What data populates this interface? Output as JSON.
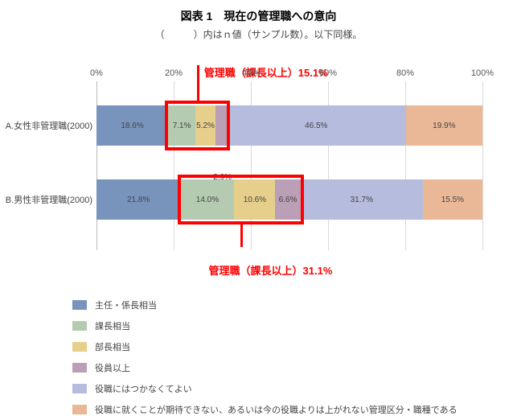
{
  "title": "図表 1　現在の管理職への意向",
  "subtitle": "（　　　）内はｎ値（サンプル数）。以下同様。",
  "callout_a": "管理職（課長以上）15.1%",
  "callout_b": "管理職（課長以上）31.1%",
  "axis_ticks": [
    "0%",
    "20%",
    "40%",
    "60%",
    "80%",
    "100%"
  ],
  "rows": {
    "a": {
      "label": "A.女性非管理職(2000)",
      "segments": [
        {
          "value": 18.6,
          "label": "18.6%",
          "color": "#7894bd"
        },
        {
          "value": 7.1,
          "label": "7.1%",
          "color": "#b4cbb1"
        },
        {
          "value": 5.2,
          "label": "5.2%",
          "color": "#e6cf8a"
        },
        {
          "value": 2.9,
          "label": "2.9%",
          "color": "#bb9fb6",
          "ext": "below"
        },
        {
          "value": 46.5,
          "label": "46.5%",
          "color": "#b5bcdd"
        },
        {
          "value": 19.9,
          "label": "19.9%",
          "color": "#eab896"
        }
      ]
    },
    "b": {
      "label": "B.男性非管理職(2000)",
      "segments": [
        {
          "value": 21.8,
          "label": "21.8%",
          "color": "#7894bd"
        },
        {
          "value": 14.0,
          "label": "14.0%",
          "color": "#b4cbb1"
        },
        {
          "value": 10.6,
          "label": "10.6%",
          "color": "#e6cf8a"
        },
        {
          "value": 6.6,
          "label": "6.6%",
          "color": "#bb9fb6"
        },
        {
          "value": 31.7,
          "label": "31.7%",
          "color": "#b5bcdd"
        },
        {
          "value": 15.5,
          "label": "15.5%",
          "color": "#eab896"
        }
      ]
    }
  },
  "legend": [
    {
      "color": "#7894bd",
      "label": "主任・係長相当"
    },
    {
      "color": "#b4cbb1",
      "label": "課長相当"
    },
    {
      "color": "#e6cf8a",
      "label": "部長相当"
    },
    {
      "color": "#bb9fb6",
      "label": "役員以上"
    },
    {
      "color": "#b5bcdd",
      "label": "役職にはつかなくてよい"
    },
    {
      "color": "#eab896",
      "label": "役職に就くことが期待できない、あるいは今の役職よりは上がれない管理区分・職種である"
    }
  ],
  "redboxes": {
    "a": {
      "left_pct": 18.6,
      "width_pct": 15.2,
      "top_off": 30,
      "height": 50
    },
    "b": {
      "left_pct": 21.8,
      "width_pct": 31.2,
      "top_off": 122,
      "height": 50
    }
  },
  "colors": {
    "red": "#ff0000",
    "grid": "#d9d9d9",
    "axis_text": "#555555"
  }
}
